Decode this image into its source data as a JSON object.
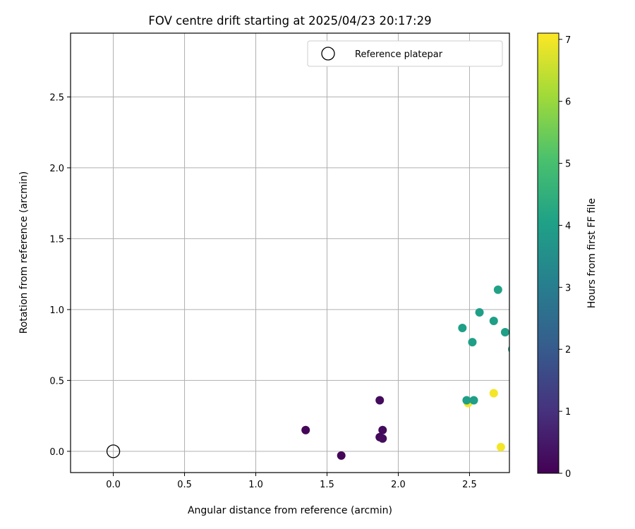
{
  "chart_data": {
    "type": "scatter",
    "title": "FOV centre drift starting at 2025/04/23 20:17:29",
    "xlabel": "Angular distance from reference (arcmin)",
    "ylabel": "Rotation from reference (arcmin)",
    "xlim": [
      -0.3,
      2.78
    ],
    "ylim": [
      -0.15,
      2.95
    ],
    "x_ticks": [
      0.0,
      0.5,
      1.0,
      1.5,
      2.0,
      2.5
    ],
    "y_ticks": [
      0.0,
      0.5,
      1.0,
      1.5,
      2.0,
      2.5
    ],
    "x_tick_labels": [
      "0.0",
      "0.5",
      "1.0",
      "1.5",
      "2.0",
      "2.5"
    ],
    "y_tick_labels": [
      "0.0",
      "0.5",
      "1.0",
      "1.5",
      "2.0",
      "2.5"
    ],
    "grid": true,
    "legend": {
      "placement": "top-right",
      "entries": [
        {
          "label": "Reference platepar",
          "marker": "open-circle"
        }
      ]
    },
    "reference_point": {
      "x": 0.0,
      "y": 0.0
    },
    "colorbar": {
      "label": "Hours from first FF file",
      "colormap": "viridis",
      "range": [
        0,
        7.1
      ],
      "ticks": [
        0,
        1,
        2,
        3,
        4,
        5,
        6,
        7
      ],
      "tick_labels": [
        "0",
        "1",
        "2",
        "3",
        "4",
        "5",
        "6",
        "7"
      ]
    },
    "points": [
      {
        "x": 1.35,
        "y": 0.15,
        "hours": 0.1
      },
      {
        "x": 1.6,
        "y": -0.03,
        "hours": 0.1
      },
      {
        "x": 1.87,
        "y": 0.36,
        "hours": 0.2
      },
      {
        "x": 1.87,
        "y": 0.1,
        "hours": 0.15
      },
      {
        "x": 1.89,
        "y": 0.15,
        "hours": 0.2
      },
      {
        "x": 1.89,
        "y": 0.09,
        "hours": 0.25
      },
      {
        "x": 2.45,
        "y": 0.87,
        "hours": 4.0
      },
      {
        "x": 2.52,
        "y": 0.77,
        "hours": 4.0
      },
      {
        "x": 2.57,
        "y": 0.98,
        "hours": 4.0
      },
      {
        "x": 2.67,
        "y": 0.92,
        "hours": 4.0
      },
      {
        "x": 2.7,
        "y": 1.14,
        "hours": 4.1
      },
      {
        "x": 2.75,
        "y": 0.84,
        "hours": 4.0
      },
      {
        "x": 2.8,
        "y": 0.72,
        "hours": 4.0
      },
      {
        "x": 2.49,
        "y": 0.34,
        "hours": 7.0
      },
      {
        "x": 2.48,
        "y": 0.36,
        "hours": 4.0
      },
      {
        "x": 2.53,
        "y": 0.36,
        "hours": 4.0
      },
      {
        "x": 2.67,
        "y": 0.41,
        "hours": 7.0
      },
      {
        "x": 2.72,
        "y": 0.03,
        "hours": 7.0
      }
    ]
  }
}
